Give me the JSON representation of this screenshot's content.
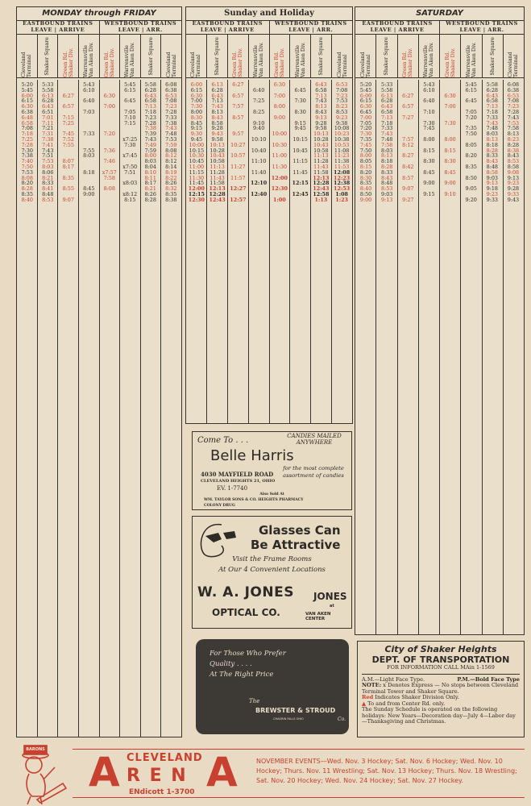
{
  "columns": [
    "Cleveland Terminal",
    "Shaker Square",
    "Green Rd. Shaker Div.",
    "Warrensville Van Aken Div.",
    "Green Rd. Shaker Div.",
    "Warrensville Van Aken Div.",
    "Shaker Square",
    "Cleveland Terminal"
  ],
  "directions": {
    "east": "EASTBOUND TRAINS",
    "east_sub": "LEAVE | ARRIVE",
    "west": "WESTBOUND TRAINS",
    "west_sub": "LEAVE | ARR."
  },
  "colors": {
    "red": "#c8402f",
    "ink": "#2e2a26",
    "paper": "#e8dac3"
  },
  "tables": [
    {
      "title": "MONDAY through FRIDAY",
      "rows": [
        [
          "5:20",
          "5:33",
          "",
          "5:43",
          "",
          "5:45",
          "5:58",
          "6:08"
        ],
        [
          "5:45",
          "5:58",
          "",
          "6:10",
          "",
          "6:15",
          "6:28",
          "6:38"
        ],
        [
          {
            "r": "6:00"
          },
          {
            "r": "6:13"
          },
          {
            "r": "6:27"
          },
          "",
          {
            "r": "6:30"
          },
          "",
          {
            "r": "6:43"
          },
          {
            "r": "6:53"
          }
        ],
        [
          "6:15",
          "6:28",
          "",
          "6:40",
          "",
          "6:45",
          "6:58",
          "7:08"
        ],
        [
          {
            "r": "6:30"
          },
          {
            "r": "6:43"
          },
          {
            "r": "6:57"
          },
          "",
          {
            "r": "7:00"
          },
          "",
          {
            "r": "7:13"
          },
          {
            "r": "7:23"
          }
        ],
        [
          "6:38",
          "6:51",
          "",
          "7:03",
          "",
          "7:05",
          "7:18",
          "7:28"
        ],
        [
          {
            "r": "6:48"
          },
          {
            "r": "7:01"
          },
          {
            "r": "7:15"
          },
          "",
          "",
          "7:10",
          "7:23",
          "7:33"
        ],
        [
          {
            "r": "6:58"
          },
          {
            "r": "7:11"
          },
          {
            "r": "7:25"
          },
          "",
          "",
          "7:15",
          "7:28",
          "7:38"
        ],
        [
          "7:08",
          "7:21",
          "",
          "",
          "",
          "",
          {
            "r": "7:38"
          },
          {
            "r": "7:43"
          }
        ],
        [
          {
            "r": "7:18"
          },
          {
            "r": "7:31"
          },
          {
            "r": "7:45"
          },
          "7:33",
          {
            "r": "7:20"
          },
          "",
          "7:39",
          "7:48"
        ],
        [
          {
            "r": "7:25"
          },
          {
            "r": "7:38"
          },
          {
            "r": "7:52"
          },
          "",
          "",
          "x7:25",
          "7:43",
          "7:53"
        ],
        [
          {
            "r": "7:28"
          },
          {
            "r": "7:41"
          },
          {
            "r": "7:55"
          },
          "",
          "",
          "7:30",
          {
            "r": "7:49"
          },
          {
            "r": "7:59"
          }
        ],
        [
          "7:30",
          "7:43",
          "",
          "7:55",
          {
            "r": "7:36"
          },
          "",
          "7:59",
          "8:08"
        ],
        [
          "7:38",
          "7:51",
          "",
          "8:03",
          "",
          "x7:45",
          {
            "r": "8:00"
          },
          {
            "r": "8:12"
          }
        ],
        [
          {
            "r": "7:40"
          },
          {
            "r": "7:53"
          },
          {
            "r": "8:07"
          },
          "",
          {
            "r": "7:46"
          },
          "",
          "8:03",
          "8:12"
        ],
        [
          {
            "r": "7:50"
          },
          {
            "r": "8:03"
          },
          {
            "r": "8:17"
          },
          "",
          "",
          "x7:50",
          "8:04",
          "8:14"
        ],
        [
          "7:53",
          "8:06",
          "",
          "8:18",
          {
            "r": "x7:57"
          },
          "7:51",
          {
            "r": "8:10"
          },
          {
            "r": "8:19"
          }
        ],
        [
          {
            "r": "8:08"
          },
          {
            "r": "8:21"
          },
          {
            "r": "8:35"
          },
          "",
          {
            "r": "7:58"
          },
          "",
          {
            "r": "8:11"
          },
          {
            "r": "8:22"
          }
        ],
        [
          "8:20",
          "8:33",
          "",
          "",
          "",
          "x8:03",
          "8:17",
          "8:26"
        ],
        [
          {
            "r": "8:28"
          },
          {
            "r": "8:41"
          },
          {
            "r": "8:55"
          },
          "8:45",
          {
            "r": "8:08"
          },
          "",
          {
            "r": "8:21"
          },
          {
            "r": "8:32"
          }
        ],
        [
          "8:35",
          "8:48",
          "",
          "9:00",
          "",
          "x8:12",
          "8:26",
          "8:35"
        ],
        [
          {
            "r": "8:40"
          },
          {
            "r": "8:53"
          },
          {
            "r": "9:07"
          },
          "",
          "",
          "8:15",
          "8:28",
          "8:38"
        ]
      ]
    },
    {
      "title": "Sunday and Holiday",
      "rows": [
        [
          {
            "r": "6:00"
          },
          {
            "r": "6:13"
          },
          {
            "r": "6:27"
          },
          "",
          {
            "r": "6:30"
          },
          "",
          {
            "r": "6:43"
          },
          {
            "r": "6:53"
          }
        ],
        [
          "6:15",
          "6:28",
          "",
          "6:40",
          "",
          "6:45",
          "6:58",
          "7:08"
        ],
        [
          {
            "r": "6:30"
          },
          {
            "r": "6:43"
          },
          {
            "r": "6:57"
          },
          "",
          {
            "r": "7:00"
          },
          "",
          {
            "r": "7:13"
          },
          {
            "r": "7:23"
          }
        ],
        [
          "7:00",
          "7:13",
          "",
          "7:25",
          "",
          "7:30",
          "7:43",
          "7:53"
        ],
        [
          {
            "r": "7:30"
          },
          {
            "r": "7:43"
          },
          {
            "r": "7:57"
          },
          "",
          {
            "r": "8:00"
          },
          "",
          {
            "r": "8:13"
          },
          {
            "r": "8:23"
          }
        ],
        [
          "8:00",
          "8:13",
          "",
          "8:25",
          "",
          "8:30",
          "8:43",
          "8:53"
        ],
        [
          {
            "r": "8:30"
          },
          {
            "r": "8:43"
          },
          {
            "r": "8:57"
          },
          "",
          {
            "r": "9:00"
          },
          "",
          {
            "r": "9:13"
          },
          {
            "r": "9:23"
          }
        ],
        [
          "8:45",
          "8:58",
          "",
          "9:10",
          "",
          "9:15",
          "9:28",
          "9:38"
        ],
        [
          "9:15",
          "9:28",
          "",
          "9:40",
          "",
          "9:45",
          "9:58",
          "10:08"
        ],
        [
          {
            "r": "9:30"
          },
          {
            "r": "9:43"
          },
          {
            "r": "9:57"
          },
          "",
          {
            "r": "10:00"
          },
          "",
          {
            "r": "10:13"
          },
          {
            "r": "10:23"
          }
        ],
        [
          "9:45",
          "9:58",
          "",
          "10:10",
          "",
          "10:15",
          "10:28",
          "10:38"
        ],
        [
          {
            "r": "10:00"
          },
          {
            "r": "10:13"
          },
          {
            "r": "10:27"
          },
          "",
          {
            "r": "10:30"
          },
          "",
          {
            "r": "10:43"
          },
          {
            "r": "10:53"
          }
        ],
        [
          "10:15",
          "10:28",
          "",
          "10:40",
          "",
          "10:45",
          "10:58",
          "11:08"
        ],
        [
          {
            "r": "10:30"
          },
          {
            "r": "10:43"
          },
          {
            "r": "10:57"
          },
          "",
          {
            "r": "11:00"
          },
          "",
          {
            "r": "11:13"
          },
          {
            "r": "11:23"
          }
        ],
        [
          "10:45",
          "10:58",
          "",
          "11:10",
          "",
          "11:15",
          "11:28",
          "11:38"
        ],
        [
          {
            "r": "11:00"
          },
          {
            "r": "11:13"
          },
          {
            "r": "11:27"
          },
          "",
          {
            "r": "11:30"
          },
          "",
          {
            "r": "11:43"
          },
          {
            "r": "11:53"
          }
        ],
        [
          "11:15",
          "11:28",
          "",
          "11:40",
          "",
          "11:45",
          "11:58",
          {
            "b": "12:08"
          }
        ],
        [
          {
            "r": "11:30"
          },
          {
            "r": "11:43"
          },
          {
            "r": "11:57"
          },
          "",
          {
            "rb": "12:00"
          },
          "",
          {
            "rb": "12:13"
          },
          {
            "rb": "12:23"
          }
        ],
        [
          "11:45",
          "11:58",
          "",
          {
            "b": "12:10"
          },
          "",
          {
            "b": "12:15"
          },
          {
            "b": "12:28"
          },
          {
            "b": "12:38"
          }
        ],
        [
          {
            "rb": "12:00"
          },
          {
            "rb": "12:13"
          },
          {
            "rb": "12:27"
          },
          "",
          {
            "rb": "12:30"
          },
          "",
          {
            "rb": "12:43"
          },
          {
            "rb": "12:53"
          }
        ],
        [
          {
            "b": "12:15"
          },
          {
            "b": "12:28"
          },
          "",
          {
            "b": "12:40"
          },
          "",
          {
            "b": "12:45"
          },
          {
            "b": "12:58"
          },
          {
            "b": "1:08"
          }
        ],
        [
          {
            "rb": "12:30"
          },
          {
            "rb": "12:43"
          },
          {
            "rb": "12:57"
          },
          "",
          {
            "rb": "1:00"
          },
          "",
          {
            "rb": "1:13"
          },
          {
            "rb": "1:23"
          }
        ]
      ]
    },
    {
      "title": "SATURDAY",
      "rows": [
        [
          "5:20",
          "5:33",
          "",
          "5:43",
          "",
          "5:45",
          "5:58",
          "6:08"
        ],
        [
          "5:45",
          "5:58",
          "",
          "6:10",
          "",
          "6:15",
          "6:28",
          "6:38"
        ],
        [
          {
            "r": "6:00"
          },
          {
            "r": "6:13"
          },
          {
            "r": "6:27"
          },
          "",
          {
            "r": "6:30"
          },
          "",
          {
            "r": "6:43"
          },
          {
            "r": "6:53"
          }
        ],
        [
          "6:15",
          "6:28",
          "",
          "6:40",
          "",
          "6:45",
          "6:58",
          "7:08"
        ],
        [
          {
            "r": "6:30"
          },
          {
            "r": "6:43"
          },
          {
            "r": "6:57"
          },
          "",
          {
            "r": "7:00"
          },
          "",
          {
            "r": "7:13"
          },
          {
            "r": "7:23"
          }
        ],
        [
          "6:45",
          "6:58",
          "",
          "7:10",
          "",
          "7:05",
          "7:18",
          "7:28"
        ],
        [
          {
            "r": "7:00"
          },
          {
            "r": "7:13"
          },
          {
            "r": "7:27"
          },
          "",
          "",
          "7:20",
          "7:33",
          "7:43"
        ],
        [
          "7:05",
          "7:18",
          "",
          "7:30",
          {
            "r": "7:30"
          },
          "",
          {
            "r": "7:43"
          },
          {
            "r": "7:53"
          }
        ],
        [
          "7:20",
          "7:33",
          "",
          "7:45",
          "",
          "7:35",
          "7:48",
          "7:58"
        ],
        [
          {
            "r": "7:30"
          },
          {
            "r": "7:43"
          },
          "",
          "",
          "",
          "7:50",
          "8:03",
          "8:13"
        ],
        [
          "7:35",
          "7:48",
          {
            "r": "7:57"
          },
          "8:00",
          {
            "r": "8:00"
          },
          "",
          {
            "r": "8:13"
          },
          {
            "r": "8:23"
          }
        ],
        [
          {
            "r": "7:45"
          },
          {
            "r": "7:58"
          },
          {
            "r": "8:12"
          },
          "",
          "",
          "8:05",
          "8:18",
          "8:28"
        ],
        [
          "7:50",
          "8:03",
          "",
          "8:15",
          {
            "r": "8:15"
          },
          "",
          {
            "r": "8:28"
          },
          {
            "r": "8:38"
          }
        ],
        [
          {
            "r": "8:00"
          },
          {
            "r": "8:13"
          },
          {
            "r": "8:27"
          },
          "",
          "",
          "8:20",
          "8:33",
          "8:43"
        ],
        [
          "8:05",
          "8:18",
          "",
          "8:30",
          {
            "r": "8:30"
          },
          "",
          {
            "r": "8:43"
          },
          {
            "r": "8:53"
          }
        ],
        [
          {
            "r": "8:15"
          },
          {
            "r": "8:28"
          },
          {
            "r": "8:42"
          },
          "",
          "",
          "8:35",
          "8:48",
          "8:58"
        ],
        [
          "8:20",
          "8:33",
          "",
          "8:45",
          {
            "r": "8:45"
          },
          "",
          {
            "r": "8:58"
          },
          {
            "r": "9:08"
          }
        ],
        [
          {
            "r": "8:30"
          },
          {
            "r": "8:43"
          },
          {
            "r": "8:57"
          },
          "",
          "",
          "8:50",
          "9:03",
          "9:13"
        ],
        [
          "8:35",
          "8:48",
          "",
          "9:00",
          {
            "r": "9:00"
          },
          "",
          {
            "r": "9:13"
          },
          {
            "r": "9:23"
          }
        ],
        [
          {
            "r": "8:40"
          },
          {
            "r": "8:53"
          },
          {
            "r": "9:07"
          },
          "",
          "",
          "9:05",
          "9:18",
          "9:28"
        ],
        [
          "8:50",
          "9:03",
          "",
          "9:15",
          {
            "r": "9:10"
          },
          "",
          {
            "r": "9:23"
          },
          {
            "r": "9:33"
          }
        ],
        [
          {
            "r": "9:00"
          },
          {
            "r": "9:13"
          },
          {
            "r": "9:27"
          },
          "",
          "",
          "9:20",
          "9:33",
          "9:43"
        ]
      ]
    }
  ],
  "ads": {
    "belle": {
      "come": "Come To . . .",
      "name": "Belle Harris",
      "mailed": "CANDIES MAILED ANYWHERE",
      "tag": "for the most complete assortment of candies",
      "address": "4030 MAYFIELD ROAD",
      "city": "CLEVELAND HEIGHTS 21, OHIO",
      "phone": "EV. 1-7740",
      "also": "Also Sold At",
      "stores": "WM. TAYLOR SONS & CO.   HEIGHTS PHARMACY",
      "stores2": "COLONY DRUG"
    },
    "jones": {
      "h1": "Glasses Can",
      "h2": "Be Attractive",
      "l1": "Visit the Frame Rooms",
      "l2": "At Our 4 Convenient Locations",
      "name": "W. A. JONES",
      "co": "OPTICAL CO.",
      "logo": "JONES",
      "at": "at",
      "center": "VAN AKEN CENTER"
    },
    "brewster": {
      "l1": "For Those Who Prefer",
      "l2": "Quality . . . .",
      "l3": "At The Right Price",
      "the": "The",
      "name": "BREWSTER & STROUD",
      "co": "Co.",
      "sub": "CHAGRIN FALLS  OHIO"
    }
  },
  "dept": {
    "city": "City of Shaker Heights",
    "title": "DEPT. OF TRANSPORTATION",
    "info": "FOR INFORMATION CALL MAin 1-1569",
    "am": "A.M.—Light Face Type.",
    "pm": "P.M.—Bold Face Type",
    "note_label": "NOTE:",
    "note": "x Denotes Express — No stops between Cleveland Terminal Tower and Shaker Square.",
    "red_word": "Red",
    "red_text": "Indicates Shaker Division Only.",
    "triangle": "▲",
    "center_text": "To and from Center Rd. only.",
    "sunday": "The Sunday Schedule is operated on the following holidays: New Years—Decoration day—July 4—Labor day—Thanksgiving and Christmas."
  },
  "footer": {
    "cleveland": "CLEVELAND",
    "a1": "A",
    "rena": "R E N",
    "a2": "A",
    "phone": "ENdicott 1-3700",
    "events": "NOVEMBER EVENTS—Wed. Nov. 3 Hockey; Sat. Nov. 6 Hockey; Wed. Nov. 10 Hockey; Thurs. Nov. 11 Wrestling; Sat. Nov. 13 Hockey; Thurs. Nov. 18 Wrestling; Sat. Nov. 20 Hockey; Wed. Nov. 24 Hockey; Sat. Nov. 27 Hockey.",
    "mascot_cap": "BARONS"
  }
}
